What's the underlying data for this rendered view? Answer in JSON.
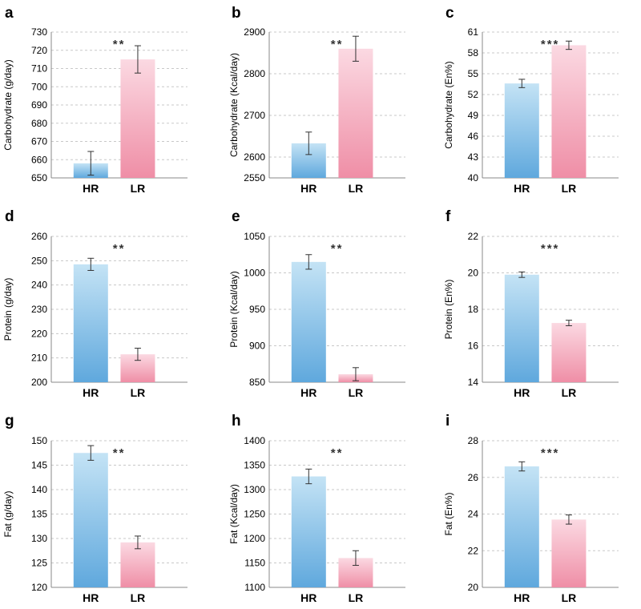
{
  "colors": {
    "hr_top": "#c4e3f5",
    "hr_bottom": "#5fa8dd",
    "lr_top": "#fbd9e2",
    "lr_bottom": "#ef8ea6",
    "grid": "#c8c8c8",
    "axis": "#888888",
    "text": "#000000"
  },
  "chart_data": [
    {
      "panel": "a",
      "type": "bar",
      "categories": [
        "HR",
        "LR"
      ],
      "values": [
        658,
        715
      ],
      "errors": [
        6.5,
        7.5
      ],
      "ylabel": "Carbohydrate (g/day)",
      "ylim": [
        650,
        730
      ],
      "yticks": [
        "650",
        "660",
        "670",
        "680",
        "690",
        "700",
        "710",
        "720",
        "730"
      ],
      "significance": "**"
    },
    {
      "panel": "b",
      "type": "bar",
      "categories": [
        "HR",
        "LR"
      ],
      "values": [
        2633,
        2860
      ],
      "errors": [
        27,
        30
      ],
      "ylabel": "Carbohydrate (Kcal/day)",
      "ylim": [
        2550,
        2900
      ],
      "yticks": [
        "2550",
        "2600",
        "2700",
        "2800",
        "2900"
      ],
      "significance": "**"
    },
    {
      "panel": "c",
      "type": "bar",
      "categories": [
        "HR",
        "LR"
      ],
      "values": [
        53.6,
        59.1
      ],
      "errors": [
        0.6,
        0.6
      ],
      "ylabel": "Carbohydrate (En%)",
      "ylim": [
        40,
        61
      ],
      "yticks": [
        "40",
        "43",
        "46",
        "49",
        "52",
        "55",
        "58",
        "61"
      ],
      "significance": "***"
    },
    {
      "panel": "d",
      "type": "bar",
      "categories": [
        "HR",
        "LR"
      ],
      "values": [
        248.5,
        211.5
      ],
      "errors": [
        2.5,
        2.5
      ],
      "ylabel": "Protein (g/day)",
      "ylim": [
        200,
        260
      ],
      "yticks": [
        "200",
        "210",
        "220",
        "230",
        "240",
        "250",
        "260"
      ],
      "significance": "**"
    },
    {
      "panel": "e",
      "type": "bar",
      "categories": [
        "HR",
        "LR"
      ],
      "values": [
        1015,
        861
      ],
      "errors": [
        10,
        9
      ],
      "ylabel": "Protein (Kcal/day)",
      "ylim": [
        850,
        1050
      ],
      "yticks": [
        "850",
        "900",
        "950",
        "1000",
        "1050"
      ],
      "significance": "**"
    },
    {
      "panel": "f",
      "type": "bar",
      "categories": [
        "HR",
        "LR"
      ],
      "values": [
        19.9,
        17.25
      ],
      "errors": [
        0.15,
        0.15
      ],
      "ylabel": "Protein (En%)",
      "ylim": [
        14,
        22
      ],
      "yticks": [
        "14",
        "16",
        "18",
        "20",
        "22"
      ],
      "significance": "***"
    },
    {
      "panel": "g",
      "type": "bar",
      "categories": [
        "HR",
        "LR"
      ],
      "values": [
        147.5,
        129.2
      ],
      "errors": [
        1.5,
        1.3
      ],
      "ylabel": "Fat (g/day)",
      "ylim": [
        120,
        150
      ],
      "yticks": [
        "120",
        "125",
        "130",
        "135",
        "140",
        "145",
        "150"
      ],
      "significance": "**"
    },
    {
      "panel": "h",
      "type": "bar",
      "categories": [
        "HR",
        "LR"
      ],
      "values": [
        1327,
        1160
      ],
      "errors": [
        15,
        15
      ],
      "ylabel": "Fat (Kcal/day)",
      "ylim": [
        1100,
        1400
      ],
      "yticks": [
        "1100",
        "1150",
        "1200",
        "1250",
        "1300",
        "1350",
        "1400"
      ],
      "significance": "**"
    },
    {
      "panel": "i",
      "type": "bar",
      "categories": [
        "HR",
        "LR"
      ],
      "values": [
        26.6,
        23.7
      ],
      "errors": [
        0.25,
        0.25
      ],
      "ylabel": "Fat (En%)",
      "ylim": [
        20,
        28
      ],
      "yticks": [
        "20",
        "22",
        "24",
        "26",
        "28"
      ],
      "significance": "***"
    }
  ]
}
